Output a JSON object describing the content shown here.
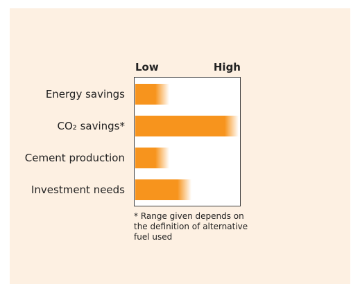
{
  "chart_data": {
    "type": "bar",
    "orientation": "horizontal",
    "categories": [
      "Energy savings",
      "CO₂ savings*",
      "Cement production",
      "Investment needs"
    ],
    "values": [
      0.32,
      0.98,
      0.32,
      0.53
    ],
    "color": "#f7941d",
    "xlim": [
      0,
      1
    ],
    "xticks": [
      {
        "value": 0,
        "label": "Low"
      },
      {
        "value": 1,
        "label": "High"
      }
    ],
    "footnote": "* Range given depends on the definition of alternative fuel used"
  }
}
